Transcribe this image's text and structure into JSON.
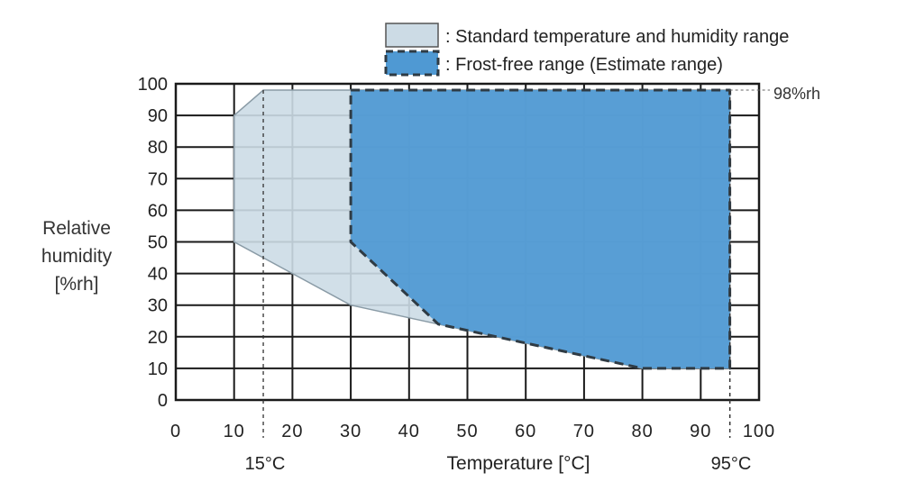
{
  "chart_data": {
    "type": "area",
    "xlabel": "Temperature [°C]",
    "ylabel_lines": [
      "Relative",
      "humidity",
      "[%rh]"
    ],
    "xlim": [
      0,
      100
    ],
    "ylim": [
      0,
      100
    ],
    "x_ticks": [
      0,
      10,
      20,
      30,
      40,
      50,
      60,
      70,
      80,
      90,
      100
    ],
    "y_ticks": [
      0,
      10,
      20,
      30,
      40,
      50,
      60,
      70,
      80,
      90,
      100
    ],
    "grid": true,
    "legend_position": "top-right",
    "series": [
      {
        "name": "Standard temperature and humidity range",
        "color": "#ccdbe5",
        "style": "solid-outline",
        "points": [
          [
            10,
            50
          ],
          [
            10,
            90
          ],
          [
            15,
            98
          ],
          [
            95,
            98
          ],
          [
            95,
            10
          ],
          [
            80,
            10
          ],
          [
            45,
            24
          ],
          [
            30,
            30
          ],
          [
            20,
            40
          ],
          [
            10,
            50
          ]
        ]
      },
      {
        "name": "Frost-free range (Estimate range)",
        "color": "#4f99d3",
        "style": "dashed-outline",
        "points": [
          [
            30,
            98
          ],
          [
            95,
            98
          ],
          [
            95,
            10
          ],
          [
            80,
            10
          ],
          [
            45,
            24
          ],
          [
            30,
            50
          ]
        ]
      }
    ],
    "annotations": {
      "humidity_limit": {
        "value": 98,
        "label": "98%rh"
      },
      "temp_low": {
        "value": 15,
        "label": "15°C"
      },
      "temp_high": {
        "value": 95,
        "label": "95°C"
      }
    }
  }
}
